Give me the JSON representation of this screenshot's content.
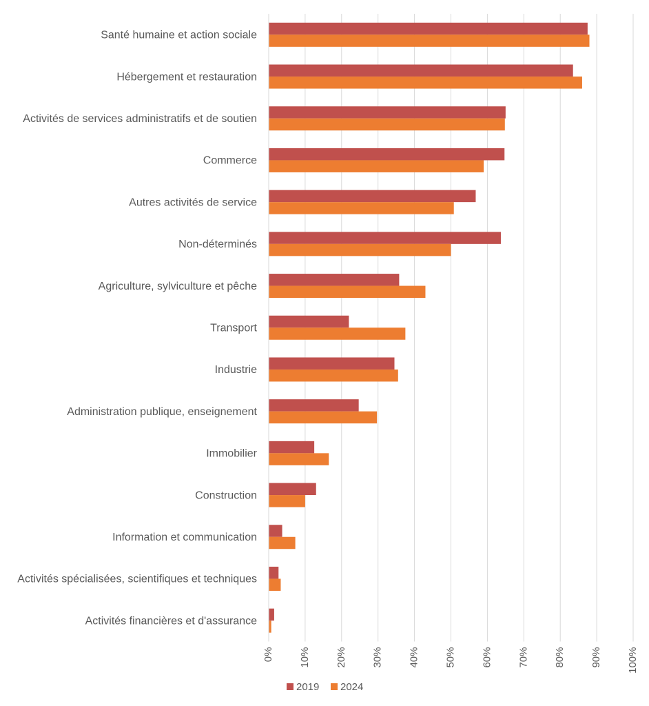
{
  "chart_data": {
    "type": "bar",
    "orientation": "horizontal",
    "categories": [
      "Santé humaine et action sociale",
      "Hébergement et restauration",
      "Activités de services administratifs et de soutien",
      "Commerce",
      "Autres activités de service",
      "Non-déterminés",
      "Agriculture, sylviculture et pêche",
      "Transport",
      "Industrie",
      "Administration publique, enseignement",
      "Immobilier",
      "Construction",
      "Information et communication",
      "Activités spécialisées, scientifiques et techniques",
      "Activités financières et d'assurance"
    ],
    "series": [
      {
        "name": "2019",
        "color": "#c0504d",
        "values": [
          87.5,
          83.5,
          65,
          64.7,
          56.8,
          63.7,
          35.8,
          22,
          34.5,
          24.7,
          12.5,
          13,
          3.7,
          2.7,
          1.5
        ]
      },
      {
        "name": "2024",
        "color": "#ed7d31",
        "values": [
          88,
          86,
          64.8,
          59,
          50.8,
          50,
          43,
          37.5,
          35.5,
          29.7,
          16.5,
          10,
          7.3,
          3.3,
          0.7
        ]
      }
    ],
    "x_ticks": [
      "0%",
      "10%",
      "20%",
      "30%",
      "40%",
      "50%",
      "60%",
      "70%",
      "80%",
      "90%",
      "100%"
    ],
    "xlim": [
      0,
      100
    ],
    "grid": true,
    "legend_position": "bottom",
    "title": "",
    "xlabel": "",
    "ylabel": ""
  }
}
